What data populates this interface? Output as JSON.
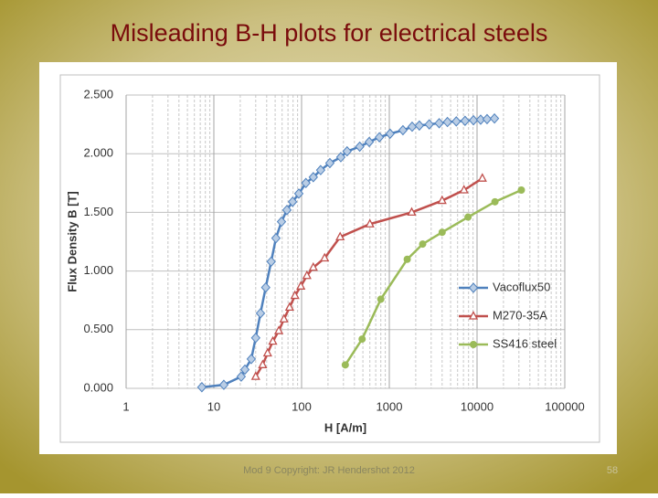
{
  "title": "Misleading B-H plots for electrical steels",
  "footer": "Mod 9 Copyright: JR Hendershot 2012",
  "page_number": "58",
  "chart_data": {
    "type": "line",
    "x_label": "H [A/m]",
    "y_label": "Flux Density B [T]",
    "log_x": true,
    "grid": true,
    "legend": "right",
    "xlim": [
      1,
      100000
    ],
    "xticks": [
      1,
      10,
      100,
      1000,
      10000,
      100000
    ],
    "ylim": [
      0,
      2.5
    ],
    "yticks": [
      {
        "value": 0,
        "label": "0.000"
      },
      {
        "value": 0.5,
        "label": "0.500"
      },
      {
        "value": 1,
        "label": "1.000"
      },
      {
        "value": 1.5,
        "label": "1.500"
      },
      {
        "value": 2,
        "label": "2.000"
      },
      {
        "value": 2.5,
        "label": "2.500"
      }
    ],
    "series": [
      {
        "name": "Vacoflux50",
        "color": "#4f81bd",
        "marker": "diamond",
        "x": [
          7.3,
          13,
          20.5,
          22.6,
          26.7,
          30,
          34,
          39,
          45,
          51,
          59,
          68,
          79,
          93,
          112,
          136,
          165,
          210,
          280,
          330,
          460,
          590,
          770,
          1020,
          1430,
          1820,
          2200,
          2850,
          3700,
          4600,
          5800,
          7300,
          9100,
          11000,
          13000,
          15800
        ],
        "values": [
          0.01,
          0.03,
          0.1,
          0.16,
          0.25,
          0.43,
          0.64,
          0.86,
          1.08,
          1.28,
          1.42,
          1.52,
          1.59,
          1.66,
          1.75,
          1.8,
          1.86,
          1.92,
          1.97,
          2.02,
          2.06,
          2.1,
          2.14,
          2.17,
          2.2,
          2.23,
          2.24,
          2.25,
          2.26,
          2.27,
          2.275,
          2.28,
          2.285,
          2.29,
          2.295,
          2.3
        ]
      },
      {
        "name": "M270-35A",
        "color": "#c0504d",
        "marker": "triangle",
        "x": [
          30,
          36,
          41,
          47,
          55,
          63,
          73,
          84,
          98,
          115,
          136,
          183,
          275,
          600,
          1800,
          4000,
          7100,
          11500
        ],
        "values": [
          0.1,
          0.2,
          0.3,
          0.4,
          0.49,
          0.59,
          0.69,
          0.79,
          0.87,
          0.96,
          1.03,
          1.11,
          1.29,
          1.4,
          1.5,
          1.6,
          1.69,
          1.79
        ]
      },
      {
        "name": "SS416 steel",
        "color": "#9bbb59",
        "marker": "circle",
        "x": [
          315,
          490,
          800,
          1600,
          2400,
          4000,
          7900,
          16000,
          32000
        ],
        "values": [
          0.2,
          0.42,
          0.76,
          1.1,
          1.23,
          1.33,
          1.46,
          1.59,
          1.69
        ]
      }
    ]
  }
}
